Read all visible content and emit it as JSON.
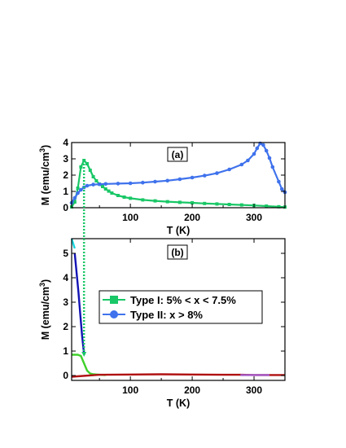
{
  "chart_data": [
    {
      "type": "line",
      "panel_label": "(a)",
      "xlabel": "T (K)",
      "ylabel": "M (emu/cm",
      "ylabel_sup": "3",
      "ylabel_close": ")",
      "xlim": [
        5,
        350
      ],
      "ylim": [
        0,
        4
      ],
      "x_ticks": [
        100,
        200,
        300
      ],
      "y_ticks": [
        0,
        1,
        2,
        3,
        4
      ],
      "series": [
        {
          "key": "type-i",
          "color": "#19c766",
          "marker": "square",
          "x": [
            5,
            10,
            15,
            20,
            25,
            30,
            35,
            40,
            45,
            50,
            55,
            60,
            65,
            70,
            80,
            90,
            100,
            120,
            140,
            160,
            180,
            200,
            220,
            240,
            260,
            280,
            300,
            320,
            340,
            350
          ],
          "y": [
            0.05,
            0.35,
            1.2,
            2.5,
            2.9,
            2.7,
            2.3,
            1.9,
            1.65,
            1.45,
            1.3,
            1.15,
            1.02,
            0.9,
            0.75,
            0.65,
            0.58,
            0.48,
            0.42,
            0.37,
            0.33,
            0.3,
            0.26,
            0.23,
            0.2,
            0.17,
            0.14,
            0.1,
            0.06,
            0.04
          ]
        },
        {
          "key": "type-ii",
          "color": "#3f72ec",
          "marker": "circle",
          "x": [
            5,
            10,
            15,
            20,
            25,
            30,
            40,
            50,
            60,
            80,
            100,
            120,
            140,
            160,
            180,
            200,
            220,
            240,
            260,
            280,
            290,
            300,
            305,
            310,
            315,
            320,
            325,
            330,
            340,
            345,
            350
          ],
          "y": [
            0.3,
            0.6,
            0.9,
            1.1,
            1.25,
            1.35,
            1.42,
            1.44,
            1.46,
            1.48,
            1.5,
            1.54,
            1.6,
            1.66,
            1.75,
            1.85,
            1.97,
            2.12,
            2.35,
            2.65,
            2.9,
            3.3,
            3.65,
            3.95,
            3.85,
            3.5,
            3.05,
            2.5,
            1.6,
            1.15,
            0.95
          ]
        }
      ]
    },
    {
      "type": "line",
      "panel_label": "(b)",
      "xlabel": "T (K)",
      "ylabel": "M (emu/cm",
      "ylabel_sup": "3",
      "ylabel_close": ")",
      "xlim": [
        5,
        350
      ],
      "ylim": [
        -0.2,
        5.6
      ],
      "x_ticks": [
        100,
        200,
        300
      ],
      "y_ticks": [
        0,
        1,
        2,
        3,
        4,
        5
      ],
      "legend": [
        {
          "label": "Type I:  5% < x < 7.5%",
          "color": "#19c766",
          "marker": "square"
        },
        {
          "label": "Type II: x > 8%",
          "color": "#3f72ec",
          "marker": "circle"
        }
      ],
      "series": [
        {
          "key": "cyan",
          "color": "#19d4dc",
          "x": [
            5,
            10
          ],
          "y": [
            5.6,
            5.2
          ]
        },
        {
          "key": "navy",
          "color": "#1313b5",
          "x": [
            10,
            13,
            16,
            19,
            22,
            25,
            26
          ],
          "y": [
            5.0,
            4.2,
            3.4,
            2.5,
            1.6,
            0.9,
            0.85
          ]
        },
        {
          "key": "green",
          "color": "#3fd02a",
          "x": [
            5,
            15,
            20,
            25,
            30,
            35,
            40,
            50,
            60
          ],
          "y": [
            0.85,
            0.85,
            0.8,
            0.5,
            0.2,
            0.08,
            0.05,
            0.03,
            0.02
          ]
        },
        {
          "key": "red",
          "color": "#b01010",
          "x": [
            5,
            50,
            100,
            150,
            200,
            250,
            280,
            300,
            320,
            350
          ],
          "y": [
            -0.05,
            0.03,
            0.04,
            0.05,
            0.04,
            0.03,
            0.03,
            0.02,
            0.02,
            0.02
          ]
        },
        {
          "key": "purple",
          "color": "#a259c8",
          "x": [
            278,
            325
          ],
          "y": [
            0.02,
            0.02
          ]
        }
      ]
    }
  ],
  "connector": {
    "color": "#19c766",
    "from_x": 25,
    "from_y_top": 2.9,
    "to_y_bottom": 0.8
  }
}
